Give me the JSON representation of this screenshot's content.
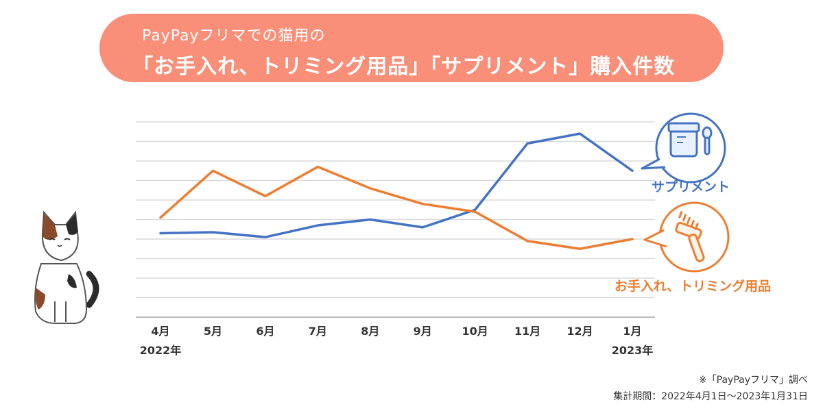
{
  "header": {
    "subtitle": "PayPayフリマでの猫用の",
    "title": "「お手入れ、トリミング用品」「サプリメント」購入件数"
  },
  "chart_data": {
    "type": "line",
    "title": "PayPayフリマでの猫用の「お手入れ、トリミング用品」「サプリメント」購入件数",
    "categories": [
      "4月",
      "5月",
      "6月",
      "7月",
      "8月",
      "9月",
      "10月",
      "11月",
      "12月",
      "1月"
    ],
    "year_labels": [
      {
        "index": 0,
        "label": "2022年"
      },
      {
        "index": 9,
        "label": "2023年"
      }
    ],
    "ylim": [
      0,
      10
    ],
    "grid": true,
    "series": [
      {
        "name": "サプリメント",
        "color": "#4472c4",
        "values": [
          4.3,
          4.35,
          4.1,
          4.7,
          5.0,
          4.6,
          5.5,
          8.9,
          9.4,
          7.5
        ]
      },
      {
        "name": "お手入れ、トリミング用品",
        "color": "#ed7d31",
        "values": [
          5.1,
          7.5,
          6.2,
          7.7,
          6.6,
          5.8,
          5.4,
          3.9,
          3.5,
          4.0
        ]
      }
    ]
  },
  "footnote": {
    "source": "※「PayPayフリマ」調べ",
    "period": "集計期間：2022年4月1日〜2023年1月31日"
  }
}
